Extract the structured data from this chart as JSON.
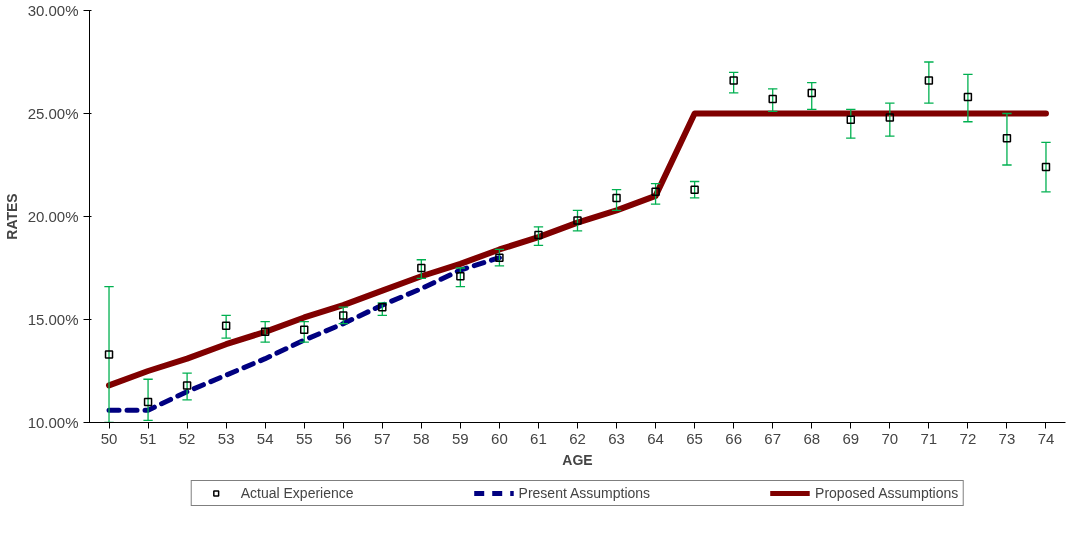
{
  "chart_data": {
    "type": "scatter",
    "xlabel": "AGE",
    "ylabel": "RATES",
    "categories": [
      "50",
      "51",
      "52",
      "53",
      "54",
      "55",
      "56",
      "57",
      "58",
      "59",
      "60",
      "61",
      "62",
      "63",
      "64",
      "65",
      "66",
      "67",
      "68",
      "69",
      "70",
      "71",
      "72",
      "73",
      "74"
    ],
    "ylim": [
      10,
      30
    ],
    "yticks": [
      {
        "value": 10,
        "label": "10.00%"
      },
      {
        "value": 15,
        "label": "15.00%"
      },
      {
        "value": 20,
        "label": "20.00%"
      },
      {
        "value": 25,
        "label": "25.00%"
      },
      {
        "value": 30,
        "label": "30.00%"
      }
    ],
    "legend": "bottom",
    "grid": false,
    "series": [
      {
        "name": "Actual Experience",
        "marker": "square",
        "color": "#000000",
        "values": [
          13.3,
          11.0,
          11.8,
          14.7,
          14.4,
          14.5,
          15.2,
          15.6,
          17.5,
          17.1,
          18.0,
          19.1,
          19.8,
          20.9,
          21.2,
          21.3,
          26.6,
          25.7,
          26.0,
          24.7,
          24.8,
          26.6,
          25.8,
          23.8,
          22.4
        ],
        "errors": [
          [
            10.0,
            16.6
          ],
          [
            10.1,
            12.1
          ],
          [
            11.1,
            12.4
          ],
          [
            14.1,
            15.2
          ],
          [
            13.9,
            14.9
          ],
          [
            13.9,
            14.9
          ],
          [
            14.8,
            15.6
          ],
          [
            15.2,
            15.8
          ],
          [
            17.0,
            17.9
          ],
          [
            16.6,
            17.5
          ],
          [
            17.6,
            18.4
          ],
          [
            18.6,
            19.5
          ],
          [
            19.3,
            20.3
          ],
          [
            20.3,
            21.3
          ],
          [
            20.6,
            21.6
          ],
          [
            20.9,
            21.7
          ],
          [
            26.0,
            27.0
          ],
          [
            25.1,
            26.2
          ],
          [
            25.2,
            26.5
          ],
          [
            23.8,
            25.2
          ],
          [
            23.9,
            25.5
          ],
          [
            25.5,
            27.5
          ],
          [
            24.6,
            26.9
          ],
          [
            22.5,
            25.0
          ],
          [
            21.2,
            23.6
          ]
        ]
      },
      {
        "name": "Present Assumptions",
        "type": "line",
        "line_style": "dashed",
        "color": "#000080",
        "values": [
          10.6,
          10.6,
          11.5,
          12.3,
          13.1,
          14.0,
          14.8,
          15.7,
          16.5,
          17.4,
          18.0,
          null,
          null,
          null,
          null,
          null,
          null,
          null,
          null,
          null,
          null,
          null,
          null,
          null,
          null
        ]
      },
      {
        "name": "Proposed Assumptions",
        "type": "line",
        "line_style": "solid",
        "color": "#800000",
        "values": [
          11.8,
          12.5,
          13.1,
          13.8,
          14.4,
          15.1,
          15.7,
          16.4,
          17.1,
          17.7,
          18.4,
          19.0,
          19.7,
          20.3,
          21.0,
          25,
          25,
          25,
          25,
          25,
          25,
          25,
          25,
          25,
          25
        ]
      }
    ]
  }
}
